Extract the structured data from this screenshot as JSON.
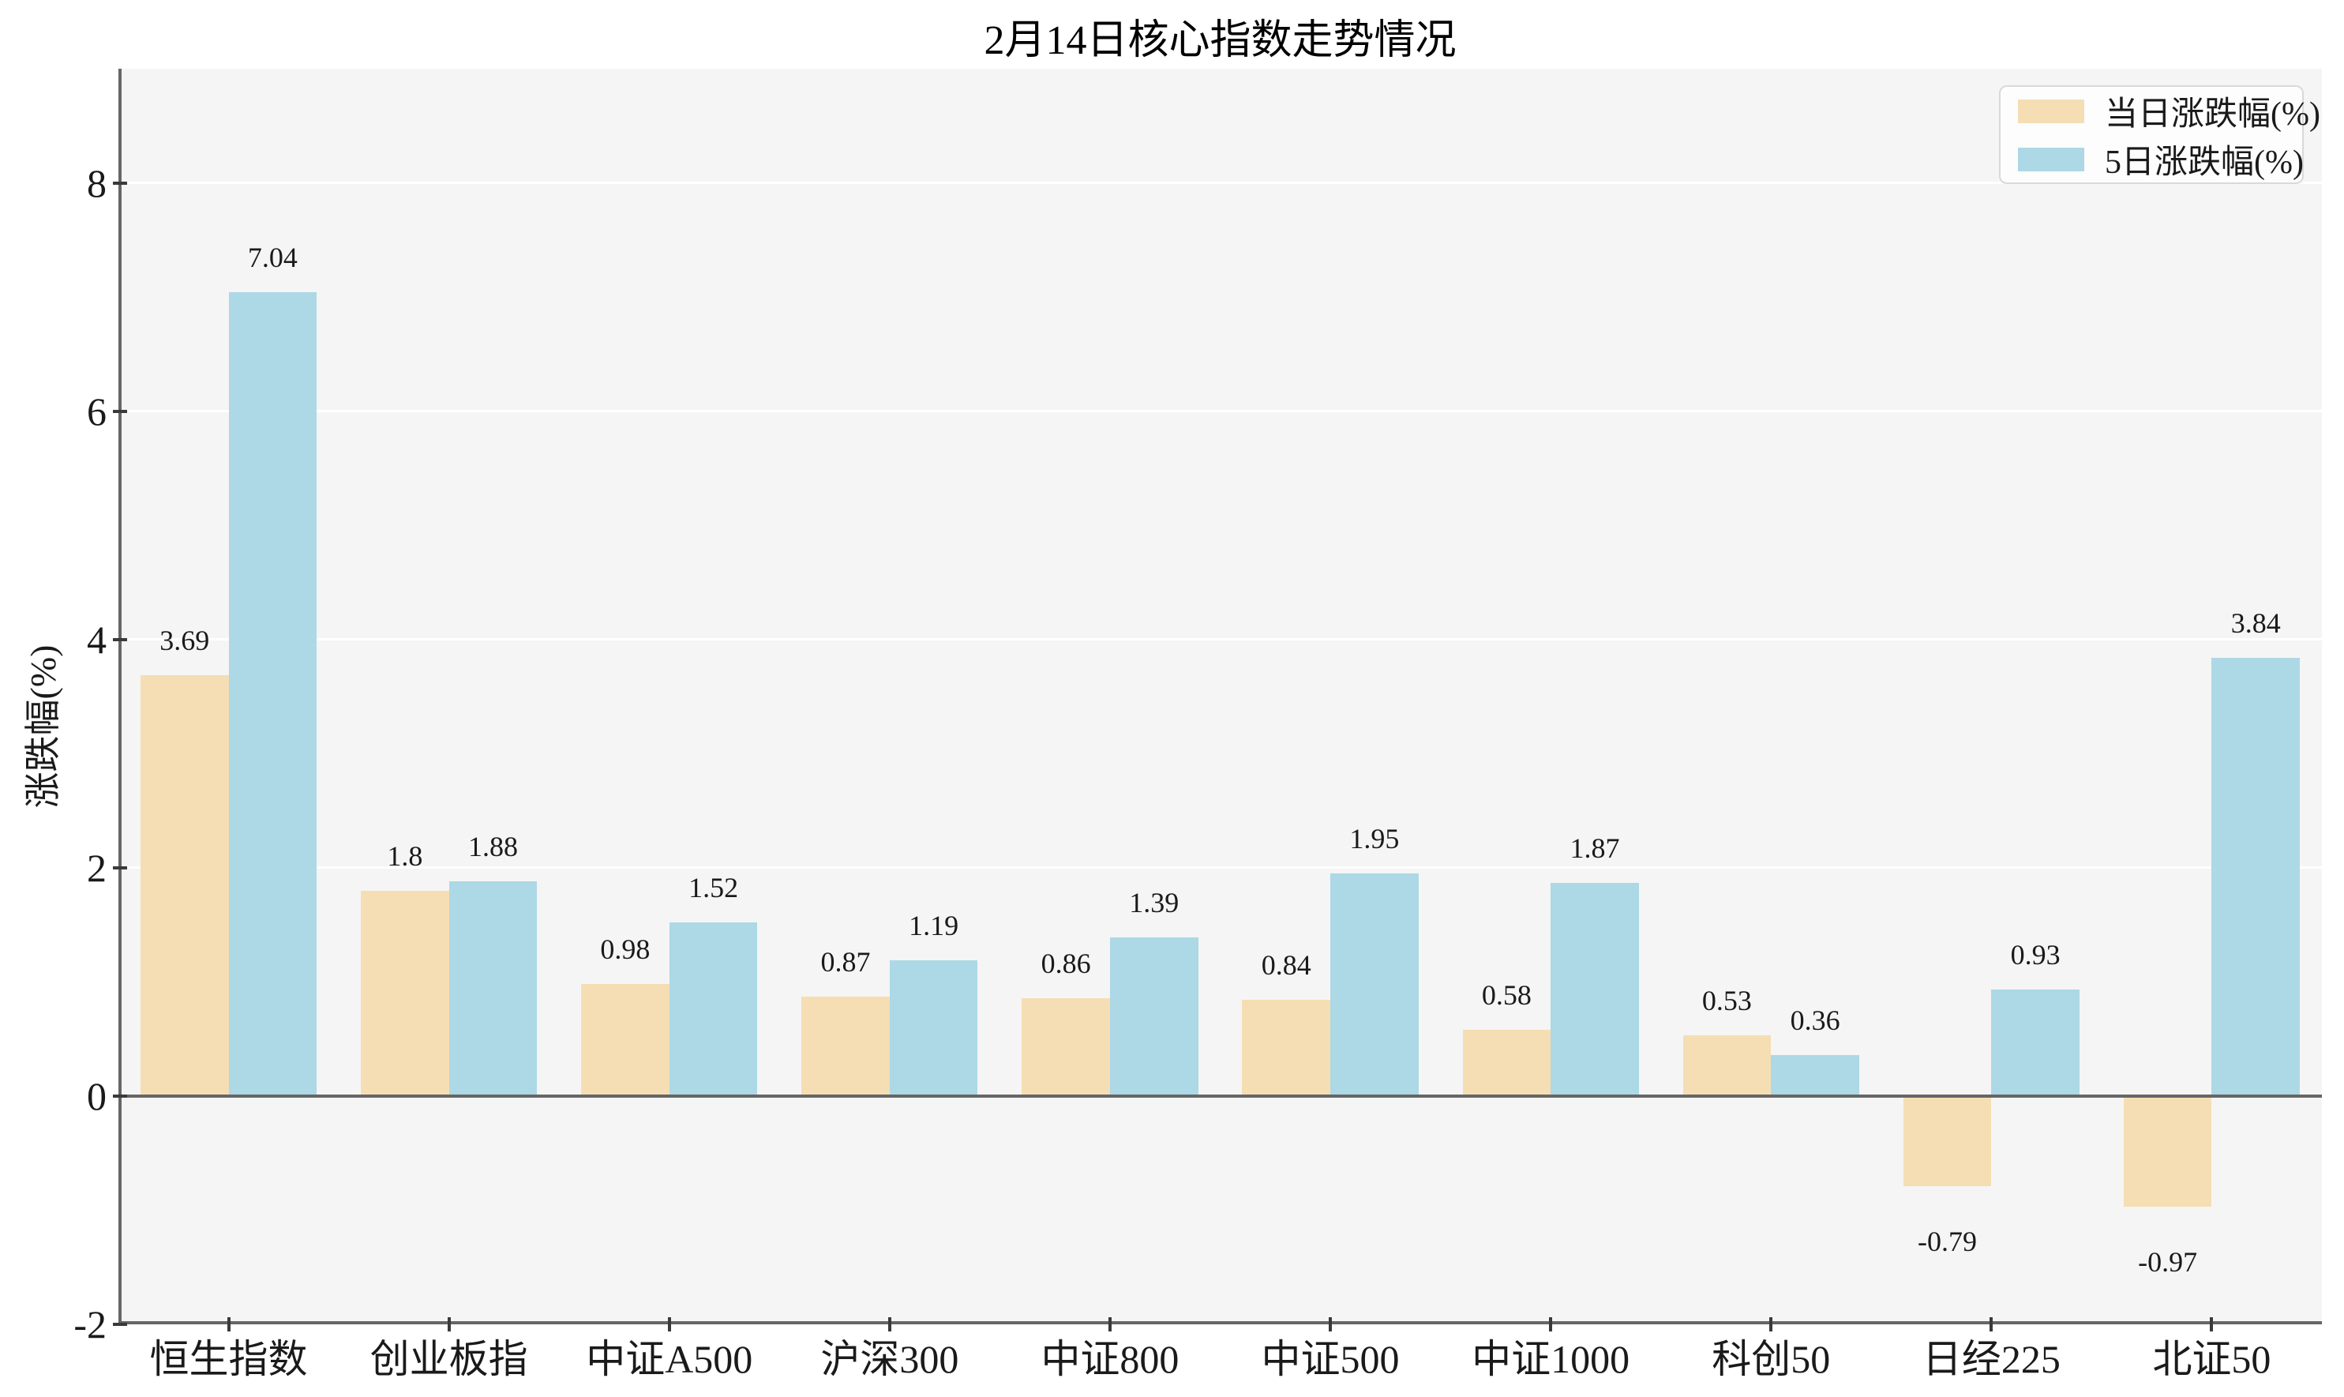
{
  "chart_data": {
    "type": "bar",
    "title": "2月14日核心指数走势情况",
    "xlabel": "",
    "ylabel": "涨跌幅(%)",
    "categories": [
      "恒生指数",
      "创业板指",
      "中证A500",
      "沪深300",
      "中证800",
      "中证500",
      "中证1000",
      "科创50",
      "日经225",
      "北证50"
    ],
    "series": [
      {
        "name": "当日涨跌幅(%)",
        "color": "#F5DEB3",
        "values": [
          3.69,
          1.8,
          0.98,
          0.87,
          0.86,
          0.84,
          0.58,
          0.53,
          -0.79,
          -0.97
        ]
      },
      {
        "name": "5日涨跌幅(%)",
        "color": "#ADD8E6",
        "values": [
          7.04,
          1.88,
          1.52,
          1.19,
          1.39,
          1.95,
          1.87,
          0.36,
          0.93,
          3.84
        ]
      }
    ],
    "ylim": [
      -2,
      9
    ],
    "yticks": [
      -2,
      0,
      2,
      4,
      6,
      8
    ],
    "grid": "horizontal-white-lines",
    "legend_position": "upper-right",
    "plot_bg": "#f5f5f5",
    "figure_bg": "#ffffff",
    "spine_color": "#666666",
    "zero_line_color": "#666666",
    "text_color": "#1a1a1a"
  }
}
